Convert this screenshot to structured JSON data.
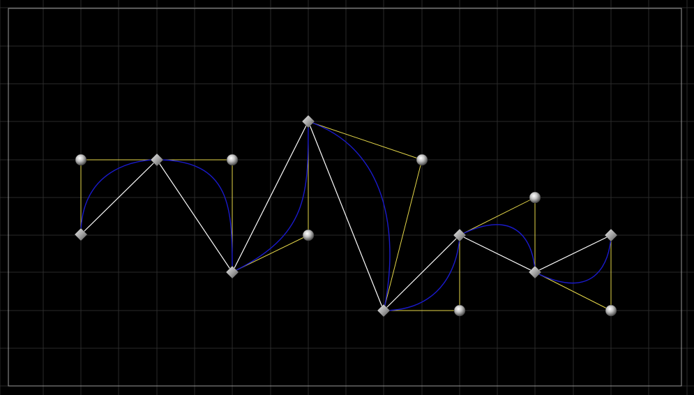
{
  "colors": {
    "background": "#000000",
    "grid": "#2a2a2a",
    "border": "#9a9a9a",
    "curve": "#1a1acc",
    "chord": "#ffffff",
    "handle_line": "#e6d84a",
    "anchor_fill": "#a8a8a8",
    "control_fill": "#b8b8b8"
  },
  "icons": {
    "anchor": "diamond-anchor-icon",
    "control": "sphere-control-icon"
  }
}
